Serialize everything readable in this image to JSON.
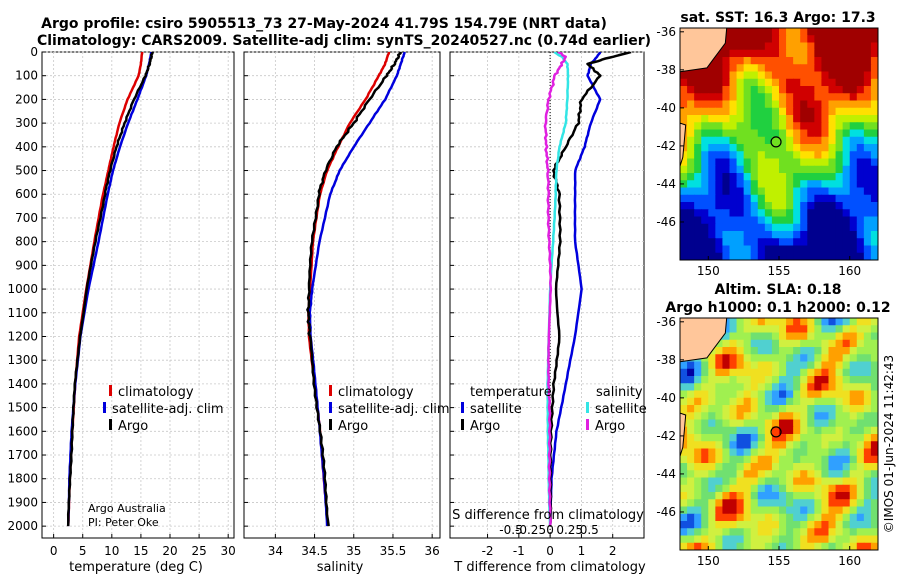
{
  "header": {
    "title_line1": "Argo profile: csiro 5905513_73 27-May-2024 41.79S 154.79E (NRT data)",
    "title_line2": "Climatology: CARS2009. Satellite-adj clim: synTS_20240527.nc (0.74d earlier)"
  },
  "colors": {
    "climatology": "#dd0000",
    "satellite": "#0000dd",
    "argo": "#000000",
    "sat_s": "#33e5e5",
    "argo_s": "#e020e0",
    "land": "#ffc69a"
  },
  "credit": {
    "line1": "Argo Australia",
    "line2": "PI: Peter Oke"
  },
  "timestamp": "©IMOS 01-Jun-2024 11:42:43",
  "depth_ticks": [
    "0",
    "100",
    "200",
    "300",
    "400",
    "500",
    "600",
    "700",
    "800",
    "900",
    "1000",
    "1100",
    "1200",
    "1300",
    "1400",
    "1500",
    "1600",
    "1700",
    "1800",
    "1900",
    "2000"
  ],
  "chart_data": [
    {
      "type": "line",
      "name": "temperature",
      "xlabel": "temperature (deg C)",
      "xlim": [
        -2,
        31
      ],
      "ylim": [
        2050,
        0
      ],
      "xticks": [
        "0",
        "5",
        "10",
        "15",
        "20",
        "25",
        "30"
      ],
      "legend": [
        "climatology",
        "satellite-adj. clim",
        "Argo"
      ],
      "depth": [
        0,
        50,
        100,
        200,
        300,
        400,
        500,
        600,
        800,
        1000,
        1200,
        1400,
        1600,
        1800,
        2000
      ],
      "series": [
        {
          "name": "climatology",
          "values": [
            15.2,
            15.0,
            14.6,
            12.7,
            11.3,
            10.3,
            9.4,
            8.5,
            7.0,
            5.6,
            4.4,
            3.7,
            3.2,
            2.8,
            2.5
          ]
        },
        {
          "name": "satellite-adj. clim",
          "values": [
            16.8,
            16.4,
            15.9,
            14.4,
            12.8,
            11.4,
            10.2,
            9.3,
            7.7,
            6.0,
            4.6,
            3.7,
            3.1,
            2.7,
            2.5
          ]
        },
        {
          "name": "Argo",
          "values": [
            17.0,
            16.5,
            15.8,
            13.8,
            12.2,
            10.8,
            9.7,
            8.8,
            7.2,
            5.7,
            4.5,
            3.7,
            3.2,
            2.8,
            2.5
          ]
        }
      ]
    },
    {
      "type": "line",
      "name": "salinity",
      "xlabel": "salinity",
      "xlim": [
        33.6,
        36.1
      ],
      "ylim": [
        2050,
        0
      ],
      "xticks": [
        "34",
        "34.5",
        "35",
        "35.5",
        "36"
      ],
      "legend": [
        "climatology",
        "satellite-adj. clim",
        "Argo"
      ],
      "depth": [
        0,
        50,
        100,
        200,
        300,
        400,
        500,
        600,
        800,
        1000,
        1100,
        1200,
        1400,
        1600,
        1800,
        2000
      ],
      "series": [
        {
          "name": "climatology",
          "values": [
            35.45,
            35.4,
            35.32,
            35.15,
            34.95,
            34.8,
            34.66,
            34.57,
            34.48,
            34.44,
            34.42,
            34.43,
            34.5,
            34.57,
            34.62,
            34.67
          ]
        },
        {
          "name": "satellite-adj. clim",
          "values": [
            35.65,
            35.6,
            35.55,
            35.4,
            35.2,
            35.0,
            34.82,
            34.7,
            34.56,
            34.47,
            34.44,
            34.45,
            34.51,
            34.57,
            34.62,
            34.66
          ]
        },
        {
          "name": "Argo",
          "values": [
            35.6,
            35.52,
            35.42,
            35.2,
            35.0,
            34.78,
            34.64,
            34.55,
            34.47,
            34.43,
            34.42,
            34.44,
            34.5,
            34.57,
            34.63,
            34.68
          ]
        }
      ]
    },
    {
      "type": "line",
      "name": "difference",
      "xlabel": "T difference from climatology",
      "xlabel_top": "S difference from climatology",
      "xlim": [
        -3.2,
        3.0
      ],
      "ylim": [
        2050,
        0
      ],
      "xticks": [
        "-2",
        "-1",
        "0",
        "1",
        "2"
      ],
      "xticks_s": [
        "-0.5",
        "-0.25",
        "0",
        "0.25",
        "0.5"
      ],
      "legend_left_title": "temperature",
      "legend_right_title": "salinity",
      "legend": [
        "satellite",
        "Argo",
        "satellite",
        "Argo"
      ],
      "depth": [
        0,
        20,
        50,
        100,
        200,
        300,
        400,
        500,
        600,
        800,
        1000,
        1200,
        1400,
        1600,
        1800,
        2000
      ],
      "series": [
        {
          "name": "T satellite",
          "values": [
            1.6,
            1.5,
            1.3,
            1.2,
            1.6,
            1.3,
            1.1,
            0.8,
            0.8,
            0.8,
            1.0,
            0.8,
            0.5,
            0.2,
            0.05,
            0.0
          ]
        },
        {
          "name": "T Argo",
          "values": [
            2.6,
            2.0,
            1.2,
            1.6,
            1.0,
            0.9,
            0.5,
            0.1,
            0.3,
            0.3,
            0.2,
            0.3,
            0.1,
            0.05,
            0.0,
            0.0
          ]
        },
        {
          "name": "S satellite",
          "values": [
            0.05,
            0.15,
            0.22,
            0.23,
            0.22,
            0.2,
            0.12,
            0.08,
            0.07,
            0.04,
            0.0,
            -0.02,
            -0.03,
            -0.03,
            -0.02,
            0.0
          ]
        },
        {
          "name": "S Argo",
          "values": [
            0.1,
            0.2,
            0.15,
            0.06,
            -0.02,
            -0.06,
            -0.05,
            -0.03,
            -0.02,
            -0.01,
            0.0,
            -0.01,
            -0.02,
            -0.01,
            0.0,
            0.0
          ]
        }
      ]
    },
    {
      "type": "heatmap",
      "name": "sst_map",
      "title": "sat. SST: 16.3 Argo: 17.3",
      "xticks": [
        "150",
        "155",
        "160"
      ],
      "yticks": [
        "-36",
        "-38",
        "-40",
        "-42",
        "-44",
        "-46"
      ],
      "xlim": [
        148,
        162
      ],
      "ylim": [
        -48,
        -35.8
      ],
      "argo_position": {
        "lon": 154.79,
        "lat": -41.79
      }
    },
    {
      "type": "heatmap",
      "name": "sla_map",
      "title_line1": "Altim. SLA: 0.18",
      "title_line2": "Argo h1000: 0.1 h2000: 0.12",
      "xticks": [
        "150",
        "155",
        "160"
      ],
      "yticks": [
        "-36",
        "-38",
        "-40",
        "-42",
        "-44",
        "-46"
      ],
      "xlim": [
        148,
        162
      ],
      "ylim": [
        -48,
        -35.8
      ],
      "argo_position": {
        "lon": 154.79,
        "lat": -41.79
      }
    }
  ]
}
